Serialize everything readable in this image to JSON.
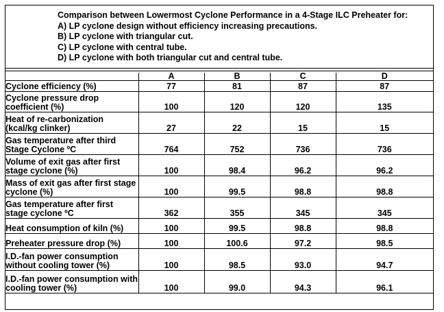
{
  "caption": {
    "title": "Comparison between Lowermost Cyclone Performance in a 4-Stage ILC Preheater for:",
    "options": [
      "A) LP cyclone design without efficiency increasing precautions.",
      "B) LP cyclone with triangular cut.",
      "C) LP cyclone with central tube.",
      "D) LP cyclone with both triangular cut and central tube."
    ]
  },
  "table": {
    "columns": [
      "A",
      "B",
      "C",
      "D"
    ],
    "rows": [
      {
        "label": [
          "Cyclone efficiency (%)"
        ],
        "values": [
          "77",
          "81",
          "87",
          "87"
        ]
      },
      {
        "label": [
          "Cyclone pressure drop",
          "coefficient (%)"
        ],
        "values": [
          "100",
          "120",
          "120",
          "135"
        ]
      },
      {
        "label": [
          "Heat of re-carbonization",
          "(kcal/kg clinker)"
        ],
        "values": [
          "27",
          "22",
          "15",
          "15"
        ]
      },
      {
        "label": [
          "Gas temperature after third",
          "Stage Cyclone ºC"
        ],
        "values": [
          "764",
          "752",
          "736",
          "736"
        ]
      },
      {
        "label": [
          "Volume of exit gas after first",
          "stage cyclone      (%)"
        ],
        "values": [
          "100",
          "98.4",
          "96.2",
          "96.2"
        ]
      },
      {
        "label": [
          "Mass of exit gas after first stage",
          "cyclone (%)"
        ],
        "values": [
          "100",
          "99.5",
          "98.8",
          "98.8"
        ]
      },
      {
        "label": [
          "Gas temperature after first",
          "stage cyclone ºC"
        ],
        "values": [
          "362",
          "355",
          "345",
          "345"
        ]
      },
      {
        "label": [
          "Heat consumption of kiln (%)"
        ],
        "values": [
          "100",
          "99.5",
          "98.8",
          "98.8"
        ]
      },
      {
        "label": [
          "Preheater pressure drop (%)"
        ],
        "values": [
          "100",
          "100.6",
          "97.2",
          "98.5"
        ]
      },
      {
        "label": [
          "I.D.-fan power consumption",
          "without cooling tower (%)"
        ],
        "values": [
          "100",
          "98.5",
          "93.0",
          "94.7"
        ]
      },
      {
        "label": [
          "I.D.-fan power consumption with",
          "cooling tower (%)"
        ],
        "values": [
          "100",
          "99.0",
          "94.3",
          "96.1"
        ]
      }
    ]
  }
}
